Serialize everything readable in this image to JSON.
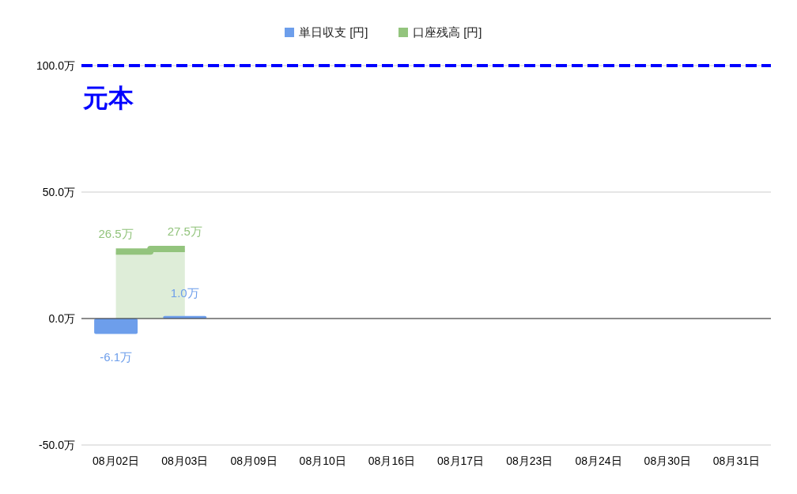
{
  "chart_data": {
    "type": "bar",
    "categories": [
      "08月02日",
      "08月03日",
      "08月09日",
      "08月10日",
      "08月16日",
      "08月17日",
      "08月23日",
      "08月24日",
      "08月30日",
      "08月31日"
    ],
    "series": [
      {
        "name": "単日収支 [円]",
        "color": "#6d9eeb",
        "values": [
          -6.1,
          1.0,
          null,
          null,
          null,
          null,
          null,
          null,
          null,
          null
        ],
        "value_labels": [
          "-6.1万",
          "1.0万",
          null,
          null,
          null,
          null,
          null,
          null,
          null,
          null
        ]
      },
      {
        "name": "口座残高 [円]",
        "type": "area",
        "color": "#93c47d",
        "values": [
          26.5,
          27.5,
          null,
          null,
          null,
          null,
          null,
          null,
          null,
          null
        ],
        "value_labels": [
          "26.5万",
          "27.5万",
          null,
          null,
          null,
          null,
          null,
          null,
          null,
          null
        ]
      }
    ],
    "ylim": [
      -50,
      100
    ],
    "yticks": [
      {
        "value": -50,
        "label": "-50.0万"
      },
      {
        "value": 0,
        "label": "0.0万"
      },
      {
        "value": 50,
        "label": "50.0万"
      },
      {
        "value": 100,
        "label": "100.0万"
      }
    ],
    "grid": "y",
    "legend": "top",
    "ref_lines": [
      {
        "axis": "y",
        "value": 100,
        "label": "元本",
        "color": "#0000ff",
        "line_style": "dashed"
      }
    ]
  }
}
